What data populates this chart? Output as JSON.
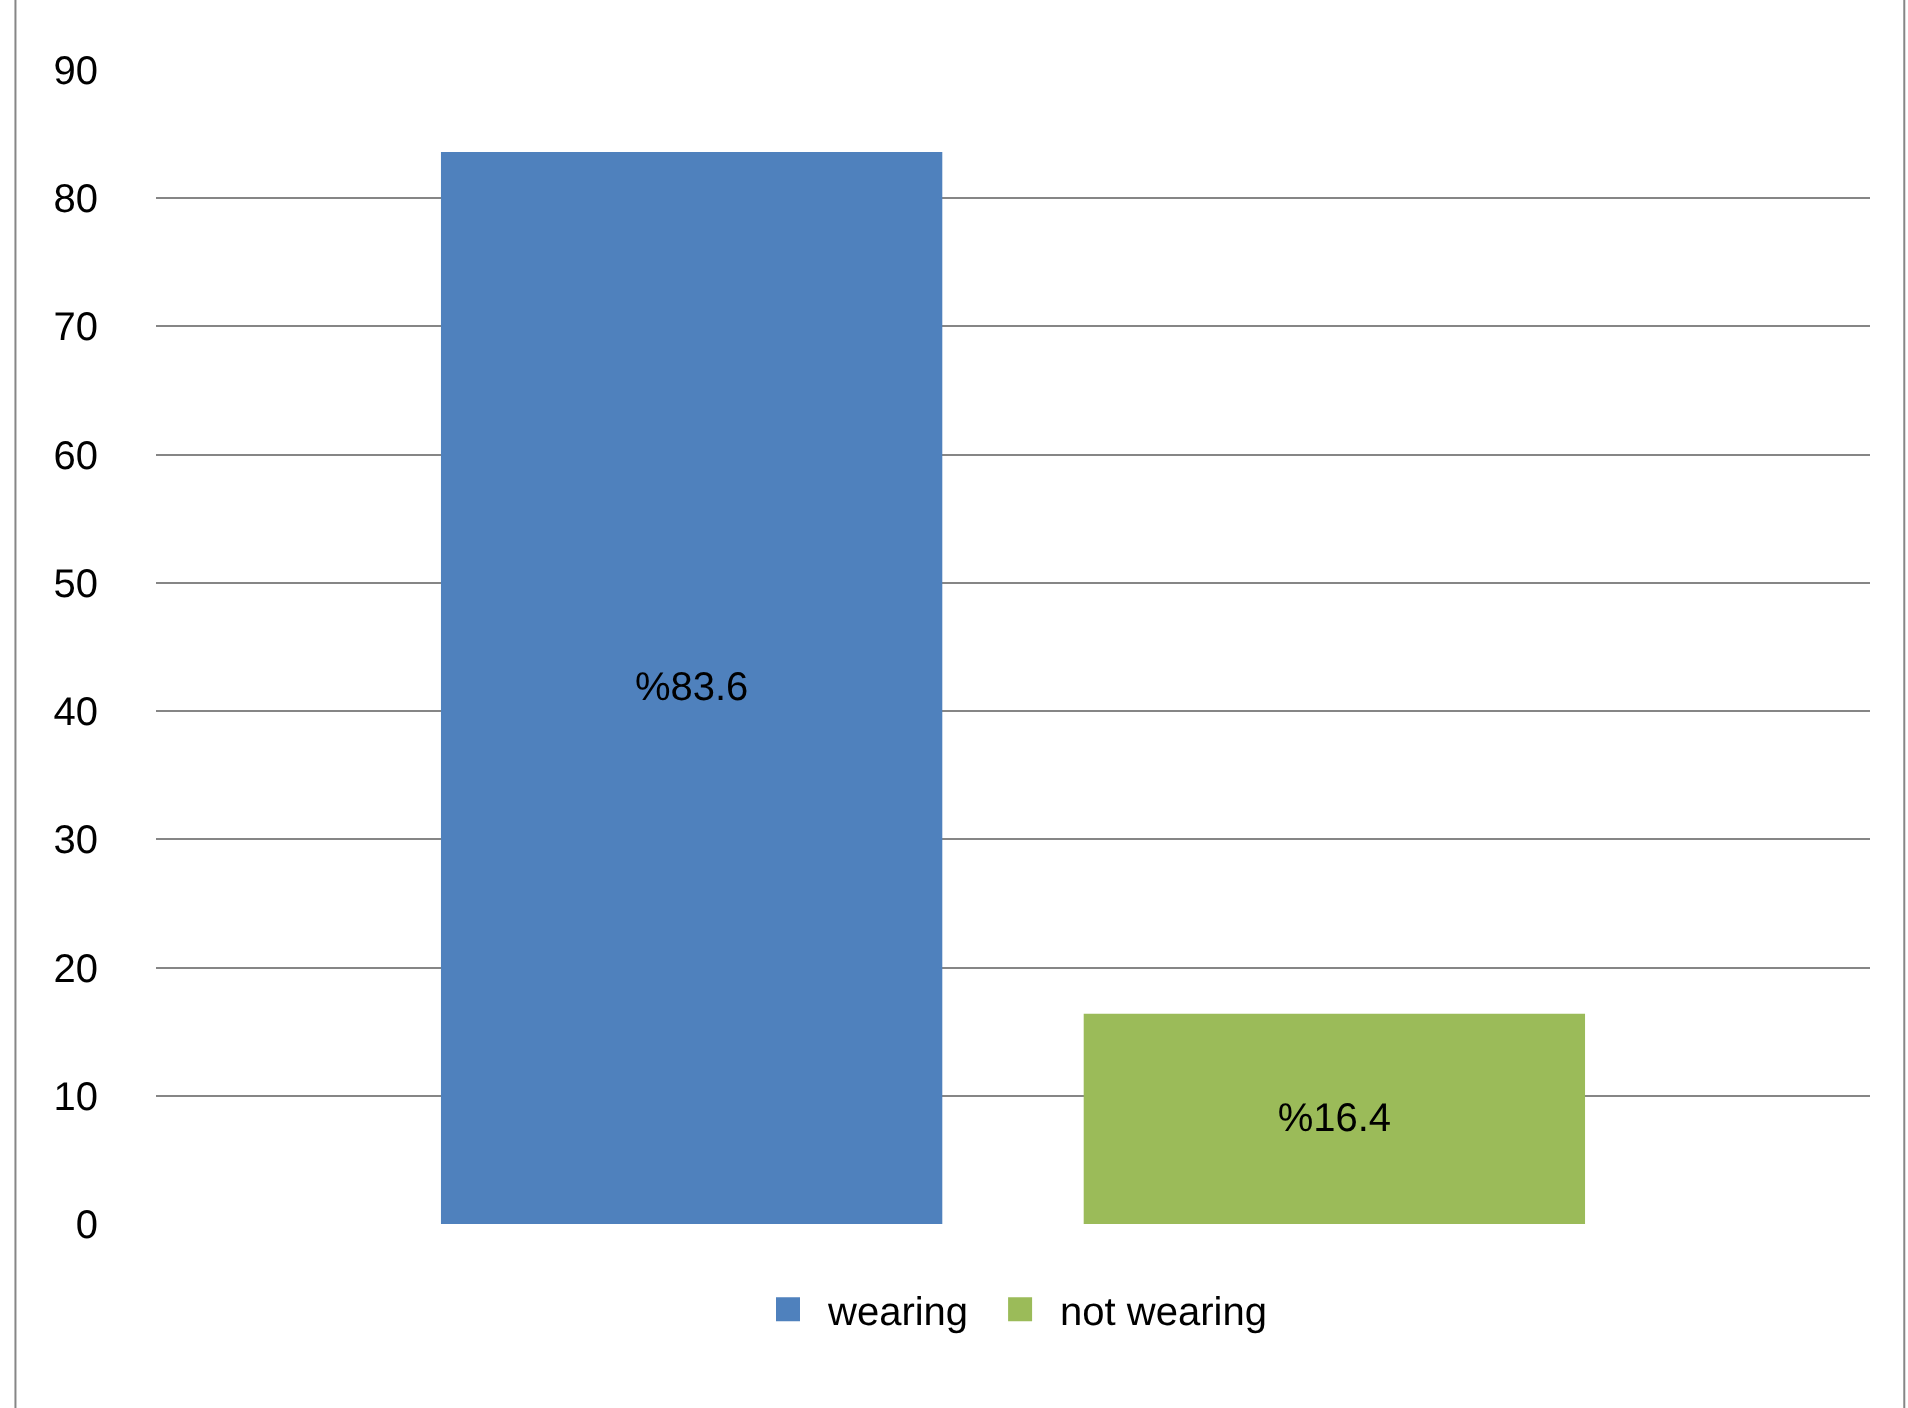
{
  "chart_data": {
    "type": "bar",
    "categories": [
      null
    ],
    "series": [
      {
        "name": "wearing",
        "color": "#4f81bd",
        "values": [
          83.6
        ],
        "value_labels": [
          "%83.6"
        ]
      },
      {
        "name": "not wearing",
        "color": "#9bbb59",
        "values": [
          16.4
        ],
        "value_labels": [
          "%16.4"
        ]
      }
    ],
    "ylim": [
      0,
      90
    ],
    "yticks": [
      0,
      10,
      20,
      30,
      40,
      50,
      60,
      70,
      80,
      90
    ],
    "grid": "y",
    "legend": "bottom",
    "tick_labels": "y"
  }
}
